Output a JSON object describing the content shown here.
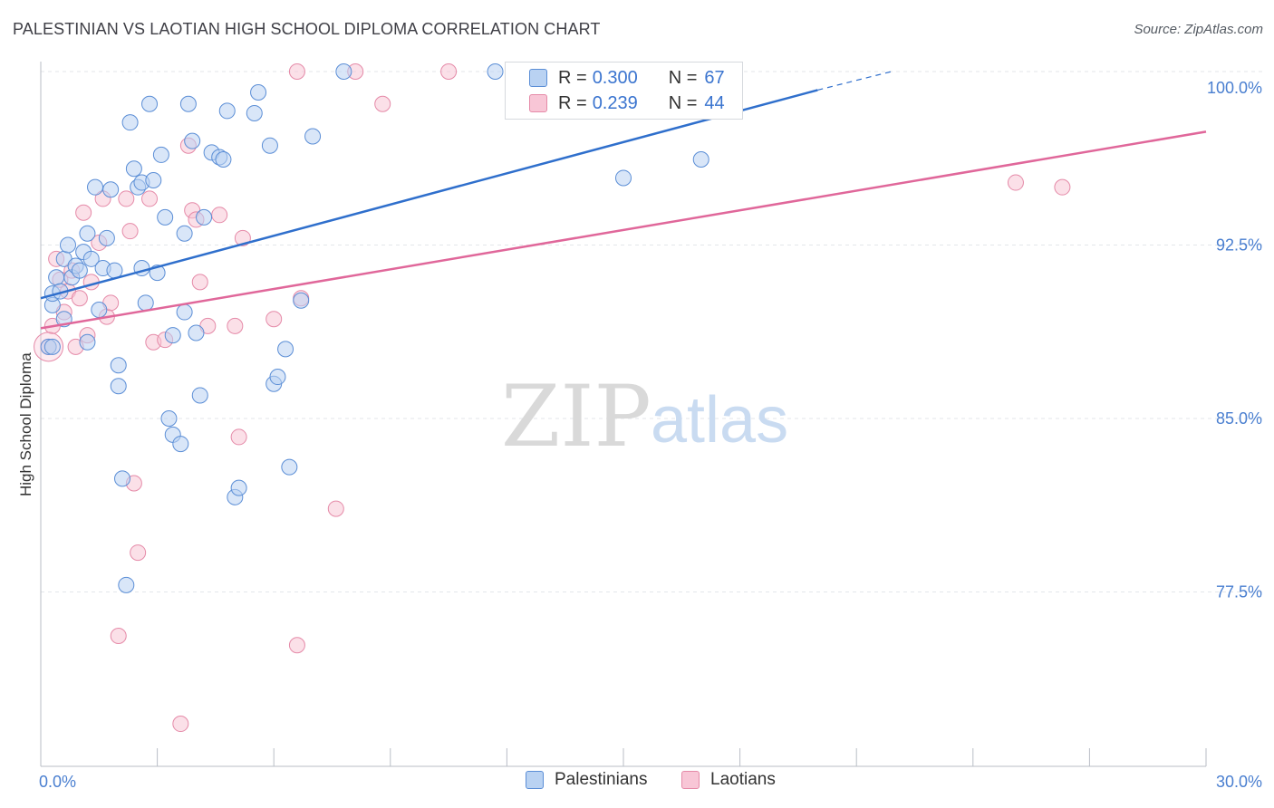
{
  "title": "PALESTINIAN VS LAOTIAN HIGH SCHOOL DIPLOMA CORRELATION CHART",
  "source": "Source: ZipAtlas.com",
  "watermark": {
    "zip": "ZIP",
    "atlas": "atlas"
  },
  "legend": {
    "series": [
      {
        "r_label": "R =",
        "r_value": "0.300",
        "n_label": "N =",
        "n_value": "67"
      },
      {
        "r_label": "R =",
        "r_value": "0.239",
        "n_label": "N =",
        "n_value": "44"
      }
    ]
  },
  "bottom_legend": {
    "palestinians": "Palestinians",
    "laotians": "Laotians"
  },
  "colors": {
    "blue_fill": "#b9d2f2",
    "blue_stroke": "#5b8ed6",
    "blue_line": "#2f6fcc",
    "pink_fill": "#f8c6d6",
    "pink_stroke": "#e58aa8",
    "pink_line": "#e0679a",
    "grid": "#e3e6ea",
    "axis_text": "#4a7fd0"
  },
  "chart_data": {
    "type": "scatter",
    "title": "PALESTINIAN VS LAOTIAN HIGH SCHOOL DIPLOMA CORRELATION CHART",
    "xlabel": "",
    "ylabel": "High School Diploma",
    "xlim": [
      0.0,
      30.0
    ],
    "ylim": [
      70.0,
      101.0
    ],
    "x_tick_labels": [
      "0.0%",
      "30.0%"
    ],
    "y_ticks": [
      77.5,
      85.0,
      92.5,
      100.0
    ],
    "y_tick_labels": [
      "77.5%",
      "85.0%",
      "92.5%",
      "100.0%"
    ],
    "series": [
      {
        "name": "Palestinians",
        "r": 0.3,
        "n": 67,
        "trend": {
          "x": [
            0.0,
            20.0
          ],
          "y": [
            90.2,
            99.2
          ],
          "dashed_to": [
            21.9,
            100.0
          ]
        },
        "points": [
          [
            0.2,
            88.1
          ],
          [
            0.3,
            89.9
          ],
          [
            0.3,
            90.4
          ],
          [
            0.4,
            91.1
          ],
          [
            0.6,
            91.9
          ],
          [
            0.5,
            90.5
          ],
          [
            0.6,
            89.3
          ],
          [
            0.7,
            92.5
          ],
          [
            0.8,
            91.1
          ],
          [
            0.9,
            91.6
          ],
          [
            1.0,
            91.4
          ],
          [
            1.1,
            92.2
          ],
          [
            1.2,
            93.0
          ],
          [
            1.2,
            88.3
          ],
          [
            1.3,
            91.9
          ],
          [
            1.4,
            95.0
          ],
          [
            1.5,
            89.7
          ],
          [
            1.6,
            91.5
          ],
          [
            1.7,
            92.8
          ],
          [
            1.8,
            94.9
          ],
          [
            1.9,
            91.4
          ],
          [
            2.0,
            87.3
          ],
          [
            2.0,
            86.4
          ],
          [
            2.1,
            82.4
          ],
          [
            2.2,
            77.8
          ],
          [
            2.3,
            97.8
          ],
          [
            2.4,
            95.8
          ],
          [
            2.5,
            95.0
          ],
          [
            2.6,
            95.2
          ],
          [
            2.6,
            91.5
          ],
          [
            2.7,
            90.0
          ],
          [
            2.8,
            98.6
          ],
          [
            2.9,
            95.3
          ],
          [
            3.0,
            91.3
          ],
          [
            3.1,
            96.4
          ],
          [
            3.2,
            93.7
          ],
          [
            3.3,
            85.0
          ],
          [
            3.4,
            84.3
          ],
          [
            3.4,
            88.6
          ],
          [
            3.6,
            83.9
          ],
          [
            3.7,
            93.0
          ],
          [
            3.7,
            89.6
          ],
          [
            3.8,
            98.6
          ],
          [
            3.9,
            97.0
          ],
          [
            4.0,
            88.7
          ],
          [
            4.2,
            93.7
          ],
          [
            4.4,
            96.5
          ],
          [
            4.6,
            96.3
          ],
          [
            4.7,
            96.2
          ],
          [
            4.8,
            98.3
          ],
          [
            5.0,
            81.6
          ],
          [
            5.1,
            82.0
          ],
          [
            5.5,
            98.2
          ],
          [
            5.6,
            99.1
          ],
          [
            5.9,
            96.8
          ],
          [
            6.0,
            86.5
          ],
          [
            6.1,
            86.8
          ],
          [
            6.3,
            88.0
          ],
          [
            6.4,
            82.9
          ],
          [
            6.7,
            90.1
          ],
          [
            7.0,
            97.2
          ],
          [
            7.8,
            100.0
          ],
          [
            11.7,
            100.0
          ],
          [
            15.0,
            95.4
          ],
          [
            17.0,
            96.2
          ],
          [
            0.3,
            88.1
          ],
          [
            4.1,
            86.0
          ]
        ]
      },
      {
        "name": "Laotians",
        "r": 0.239,
        "n": 44,
        "trend": {
          "x": [
            0.0,
            30.0
          ],
          "y": [
            88.9,
            97.4
          ]
        },
        "points": [
          [
            0.2,
            88.1
          ],
          [
            0.3,
            89.0
          ],
          [
            0.4,
            91.9
          ],
          [
            0.5,
            91.0
          ],
          [
            0.6,
            89.6
          ],
          [
            0.7,
            90.5
          ],
          [
            0.8,
            91.4
          ],
          [
            0.9,
            88.1
          ],
          [
            1.0,
            90.2
          ],
          [
            1.1,
            93.9
          ],
          [
            1.2,
            88.6
          ],
          [
            1.3,
            90.9
          ],
          [
            1.5,
            92.6
          ],
          [
            1.6,
            94.5
          ],
          [
            1.7,
            89.4
          ],
          [
            1.8,
            90.0
          ],
          [
            2.0,
            75.6
          ],
          [
            2.2,
            94.5
          ],
          [
            2.3,
            93.1
          ],
          [
            2.4,
            82.2
          ],
          [
            2.5,
            79.2
          ],
          [
            2.8,
            94.5
          ],
          [
            2.9,
            88.3
          ],
          [
            3.2,
            88.4
          ],
          [
            3.6,
            71.8
          ],
          [
            3.8,
            96.8
          ],
          [
            3.9,
            94.0
          ],
          [
            4.0,
            93.6
          ],
          [
            4.1,
            90.9
          ],
          [
            4.3,
            89.0
          ],
          [
            4.6,
            93.8
          ],
          [
            5.0,
            89.0
          ],
          [
            5.1,
            84.2
          ],
          [
            5.2,
            92.8
          ],
          [
            6.0,
            89.3
          ],
          [
            6.6,
            75.2
          ],
          [
            6.7,
            90.2
          ],
          [
            6.6,
            100.0
          ],
          [
            7.6,
            81.1
          ],
          [
            8.1,
            100.0
          ],
          [
            8.8,
            98.6
          ],
          [
            10.5,
            100.0
          ],
          [
            25.1,
            95.2
          ],
          [
            26.3,
            95.0
          ]
        ]
      }
    ]
  }
}
